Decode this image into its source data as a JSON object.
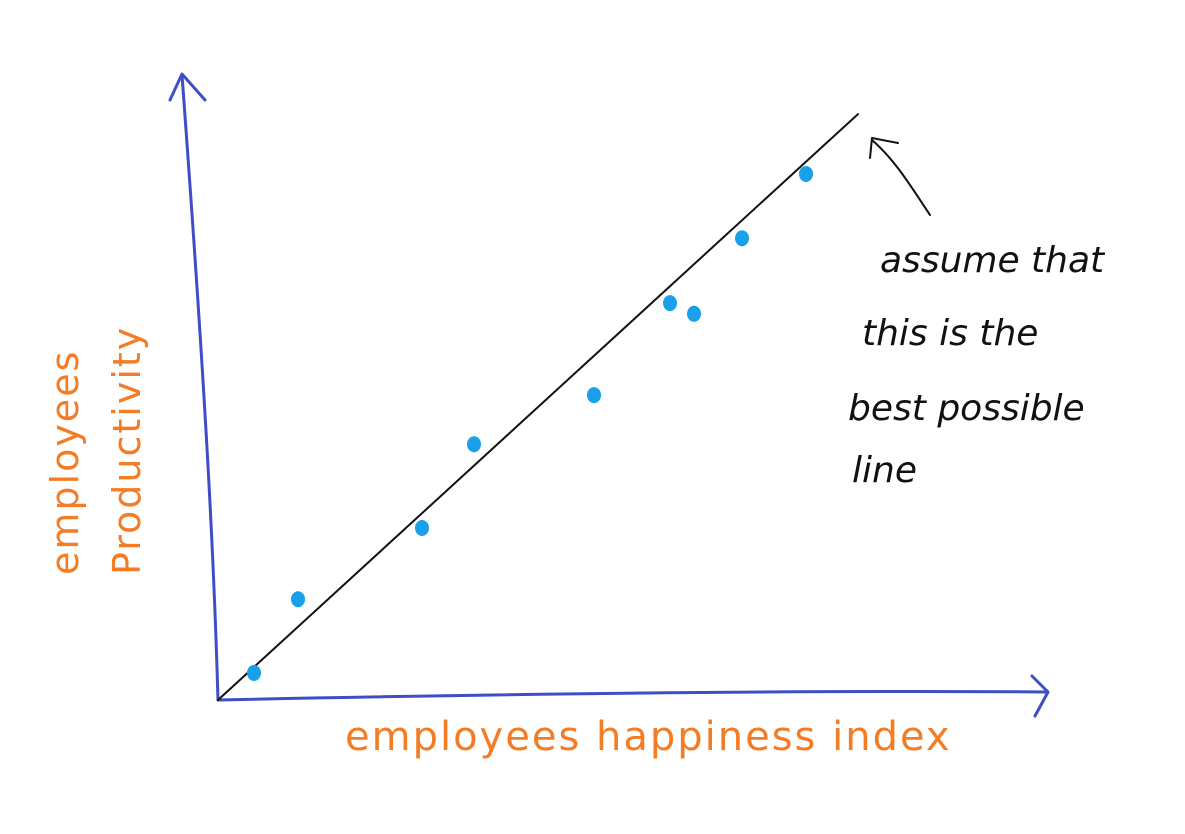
{
  "chart_data": {
    "type": "scatter",
    "title": "",
    "xlabel": "employees happiness index",
    "ylabel_lines": [
      "employees",
      "Productivity"
    ],
    "xlim": [
      0,
      10
    ],
    "ylim": [
      0,
      10
    ],
    "grid": false,
    "legend": "none",
    "points": [
      {
        "x": 0.45,
        "y": 0.43
      },
      {
        "x": 1.0,
        "y": 1.6
      },
      {
        "x": 2.55,
        "y": 2.73
      },
      {
        "x": 3.2,
        "y": 4.06
      },
      {
        "x": 4.7,
        "y": 4.84
      },
      {
        "x": 5.65,
        "y": 6.3
      },
      {
        "x": 5.95,
        "y": 6.13
      },
      {
        "x": 6.55,
        "y": 7.33
      },
      {
        "x": 7.35,
        "y": 8.35
      }
    ],
    "fit_line": {
      "x": [
        0,
        8.0
      ],
      "y": [
        0,
        9.3
      ]
    },
    "annotation": {
      "lines": [
        "assume that",
        "this is the",
        "best possible",
        "line"
      ]
    },
    "colors": {
      "axis": "#3f4ec6",
      "points": "#1aa0ea",
      "labels": "#f47c24",
      "line": "#111111"
    }
  }
}
